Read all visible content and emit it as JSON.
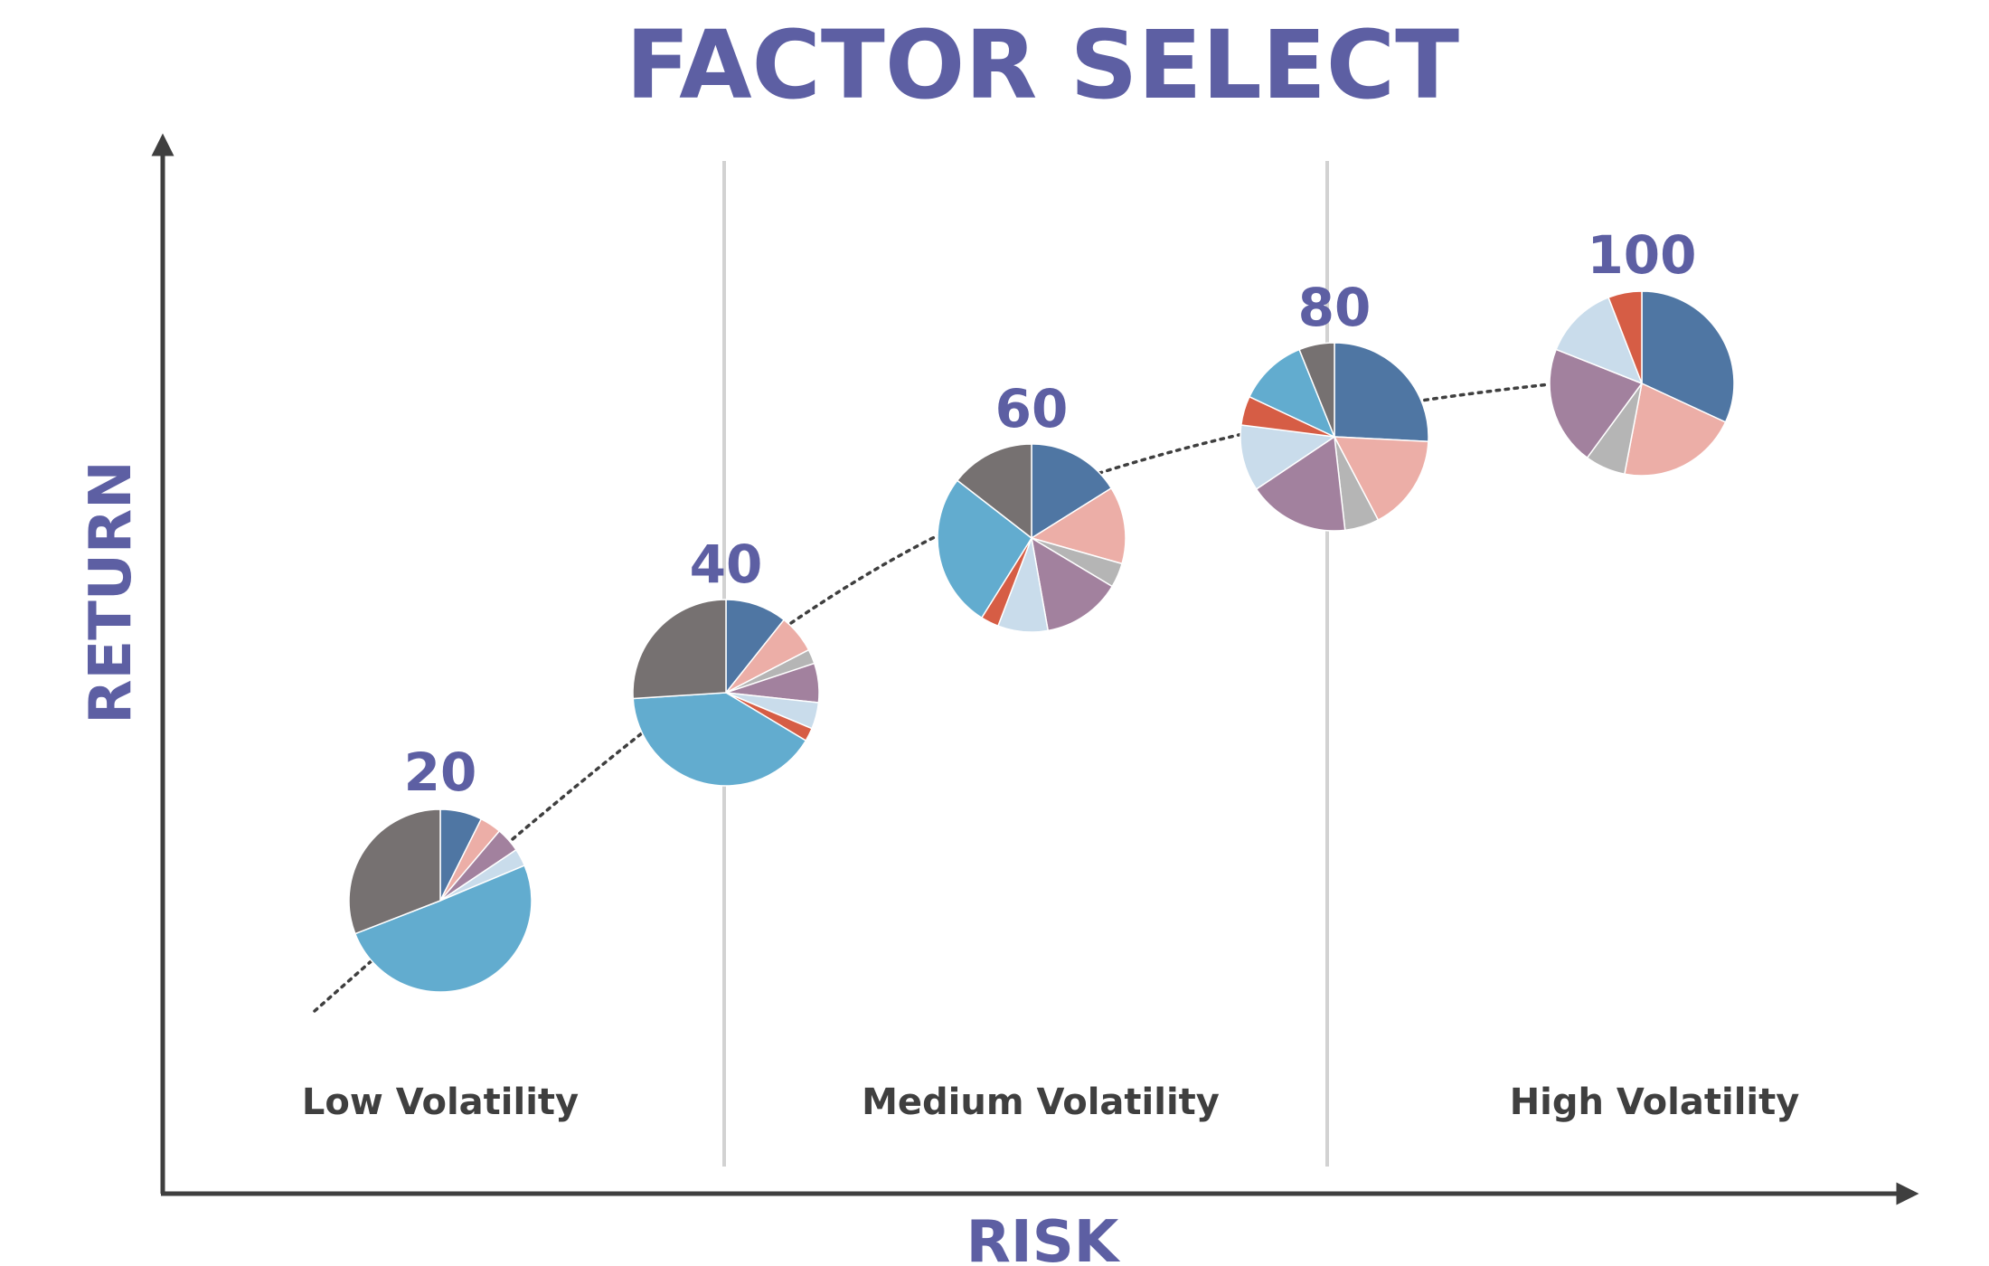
{
  "chart_data": {
    "type": "pie",
    "title": "FACTOR SELECT",
    "xlabel": "RISK",
    "ylabel": "RETURN",
    "regions": [
      "Low Volatility",
      "Medium Volatility",
      "High Volatility"
    ],
    "colors": {
      "title": "#5d5fa3",
      "axis": "#3f3f3f",
      "region_text": "#3f3f3f",
      "divider": "#d2d2d2",
      "trend": "#3f3f3f",
      "slice_border": "#ffffff"
    },
    "palette": {
      "blue": "#4f76a3",
      "salmon": "#ecaea7",
      "gray": "#b5b5b5",
      "mauve": "#a2819e",
      "light_blue": "#c9dceb",
      "red": "#d65d45",
      "sky": "#62accf",
      "dark_gray": "#767171"
    },
    "portfolios": [
      {
        "label": "20",
        "slices": [
          {
            "color": "blue",
            "share": 7.4
          },
          {
            "color": "salmon",
            "share": 3.8
          },
          {
            "color": "mauve",
            "share": 4.4
          },
          {
            "color": "light_blue",
            "share": 3.1
          },
          {
            "color": "sky",
            "share": 50.4
          },
          {
            "color": "dark_gray",
            "share": 30.9
          }
        ]
      },
      {
        "label": "40",
        "slices": [
          {
            "color": "blue",
            "share": 10.7
          },
          {
            "color": "salmon",
            "share": 6.7
          },
          {
            "color": "gray",
            "share": 2.5
          },
          {
            "color": "mauve",
            "share": 6.8
          },
          {
            "color": "light_blue",
            "share": 4.6
          },
          {
            "color": "red",
            "share": 2.3
          },
          {
            "color": "sky",
            "share": 40.4
          },
          {
            "color": "dark_gray",
            "share": 26.0
          }
        ]
      },
      {
        "label": "60",
        "slices": [
          {
            "color": "blue",
            "share": 16.1
          },
          {
            "color": "salmon",
            "share": 13.3
          },
          {
            "color": "gray",
            "share": 4.2
          },
          {
            "color": "mauve",
            "share": 13.6
          },
          {
            "color": "light_blue",
            "share": 8.6
          },
          {
            "color": "red",
            "share": 3.1
          },
          {
            "color": "sky",
            "share": 26.6
          },
          {
            "color": "dark_gray",
            "share": 14.5
          }
        ]
      },
      {
        "label": "80",
        "slices": [
          {
            "color": "blue",
            "share": 25.8
          },
          {
            "color": "salmon",
            "share": 16.5
          },
          {
            "color": "gray",
            "share": 5.9
          },
          {
            "color": "mauve",
            "share": 17.4
          },
          {
            "color": "light_blue",
            "share": 11.4
          },
          {
            "color": "red",
            "share": 5.0
          },
          {
            "color": "sky",
            "share": 11.9
          },
          {
            "color": "dark_gray",
            "share": 6.1
          }
        ]
      },
      {
        "label": "100",
        "slices": [
          {
            "color": "blue",
            "share": 31.9
          },
          {
            "color": "salmon",
            "share": 21.1
          },
          {
            "color": "gray",
            "share": 7.1
          },
          {
            "color": "mauve",
            "share": 20.9
          },
          {
            "color": "light_blue",
            "share": 13.1
          },
          {
            "color": "red",
            "share": 5.9
          }
        ]
      }
    ]
  }
}
